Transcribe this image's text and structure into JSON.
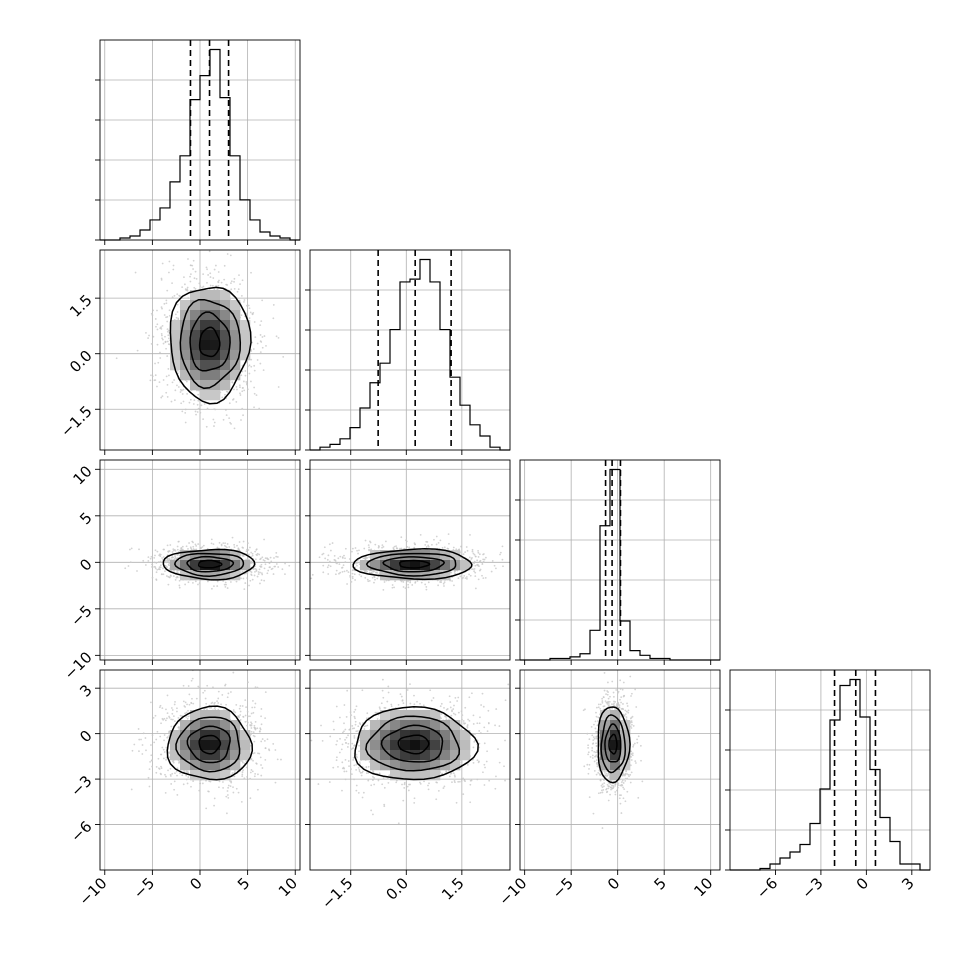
{
  "chart_data": {
    "type": "corner",
    "n_params": 4,
    "grid": true,
    "axis_ranges": [
      [
        -10.5,
        10.5
      ],
      [
        -2.6,
        2.8
      ],
      [
        -10.5,
        11.0
      ],
      [
        -9.0,
        4.2
      ]
    ],
    "ticks": [
      [
        -10,
        -5,
        0,
        5,
        10
      ],
      [
        -1.5,
        0.0,
        1.5
      ],
      [
        -10,
        -5,
        0,
        5,
        10
      ],
      [
        -6,
        -3,
        0,
        3
      ]
    ],
    "tick_labels": [
      [
        "−10",
        "−5",
        "0",
        "5",
        "10"
      ],
      [
        "−1.5",
        "0.0",
        "1.5"
      ],
      [
        "−10",
        "−5",
        "0",
        "5",
        "10"
      ],
      [
        "−6",
        "−3",
        "0",
        "3"
      ]
    ],
    "diagonal_histograms": [
      {
        "param": 0,
        "bin_edges": [
          -10.5,
          -9.45,
          -8.4,
          -7.35,
          -6.3,
          -5.25,
          -4.2,
          -3.15,
          -2.1,
          -1.05,
          0.0,
          1.05,
          2.1,
          3.15,
          4.2,
          5.25,
          6.3,
          7.35,
          8.4,
          9.45,
          10.5
        ],
        "counts": [
          0,
          0,
          1,
          2,
          5,
          10,
          16,
          29,
          42,
          70,
          82,
          95,
          71,
          42,
          20,
          10,
          4,
          2,
          1,
          0
        ],
        "quantile_lines": [
          -1.0,
          1.0,
          3.0
        ]
      },
      {
        "param": 1,
        "bin_edges": [
          -2.6,
          -2.33,
          -2.06,
          -1.79,
          -1.52,
          -1.25,
          -0.98,
          -0.71,
          -0.44,
          -0.17,
          0.1,
          0.37,
          0.64,
          0.91,
          1.18,
          1.45,
          1.72,
          1.99,
          2.26,
          2.53,
          2.8
        ],
        "counts": [
          0,
          1,
          2,
          4,
          8,
          15,
          24,
          31,
          43,
          60,
          61,
          68,
          60,
          43,
          26,
          16,
          9,
          5,
          1,
          0
        ],
        "quantile_lines": [
          -0.76,
          0.24,
          1.21
        ]
      },
      {
        "param": 2,
        "bin_edges": [
          -10.5,
          -9.425,
          -8.35,
          -7.275,
          -6.2,
          -5.125,
          -4.05,
          -2.975,
          -1.9,
          -0.825,
          0.25,
          1.325,
          2.4,
          3.475,
          4.55,
          5.625,
          6.7,
          7.775,
          8.85,
          9.925,
          11.0
        ],
        "counts": [
          0,
          0,
          0,
          1,
          1,
          2,
          4,
          19,
          86,
          122,
          25,
          6,
          3,
          1,
          1,
          0,
          0,
          0,
          0,
          0
        ],
        "quantile_lines": [
          -1.3,
          -0.6,
          0.3
        ]
      },
      {
        "param": 3,
        "bin_edges": [
          -9.0,
          -8.34,
          -7.68,
          -7.02,
          -6.36,
          -5.7,
          -5.04,
          -4.38,
          -3.72,
          -3.06,
          -2.4,
          -1.74,
          -1.08,
          -0.42,
          0.24,
          0.9,
          1.56,
          2.22,
          2.88,
          3.54,
          4.2
        ],
        "counts": [
          0,
          0,
          0,
          1,
          4,
          8,
          12,
          17,
          31,
          54,
          100,
          123,
          127,
          102,
          67,
          35,
          19,
          4,
          4,
          0
        ],
        "quantile_lines": [
          -2.1,
          -0.7,
          0.6
        ]
      }
    ],
    "pair_panels": [
      {
        "x_param": 0,
        "y_param": 1,
        "center": [
          1.0,
          0.3
        ],
        "sigma": [
          2.1,
          0.78
        ],
        "rotation": 0
      },
      {
        "x_param": 0,
        "y_param": 2,
        "center": [
          1.0,
          -0.2
        ],
        "sigma": [
          2.4,
          0.8
        ],
        "rotation": 0
      },
      {
        "x_param": 1,
        "y_param": 2,
        "center": [
          0.2,
          -0.2
        ],
        "sigma": [
          0.8,
          0.8
        ],
        "rotation": 0
      },
      {
        "x_param": 0,
        "y_param": 3,
        "center": [
          1.0,
          -0.7
        ],
        "sigma": [
          2.2,
          1.2
        ],
        "rotation": 0
      },
      {
        "x_param": 1,
        "y_param": 3,
        "center": [
          0.2,
          -0.7
        ],
        "sigma": [
          0.82,
          1.2
        ],
        "rotation": 0
      },
      {
        "x_param": 2,
        "y_param": 3,
        "center": [
          -0.5,
          -0.7
        ],
        "sigma": [
          0.85,
          1.25
        ],
        "rotation": 0
      }
    ],
    "contour_levels_sigma": [
      0.5,
      1.0,
      1.5,
      2.0
    ],
    "colors": {
      "line": "#000000",
      "grid": "#b0b0b0",
      "scatter": "#c8c8c8",
      "density_dark": "#111111",
      "density_light": "#f2f2f2"
    }
  }
}
